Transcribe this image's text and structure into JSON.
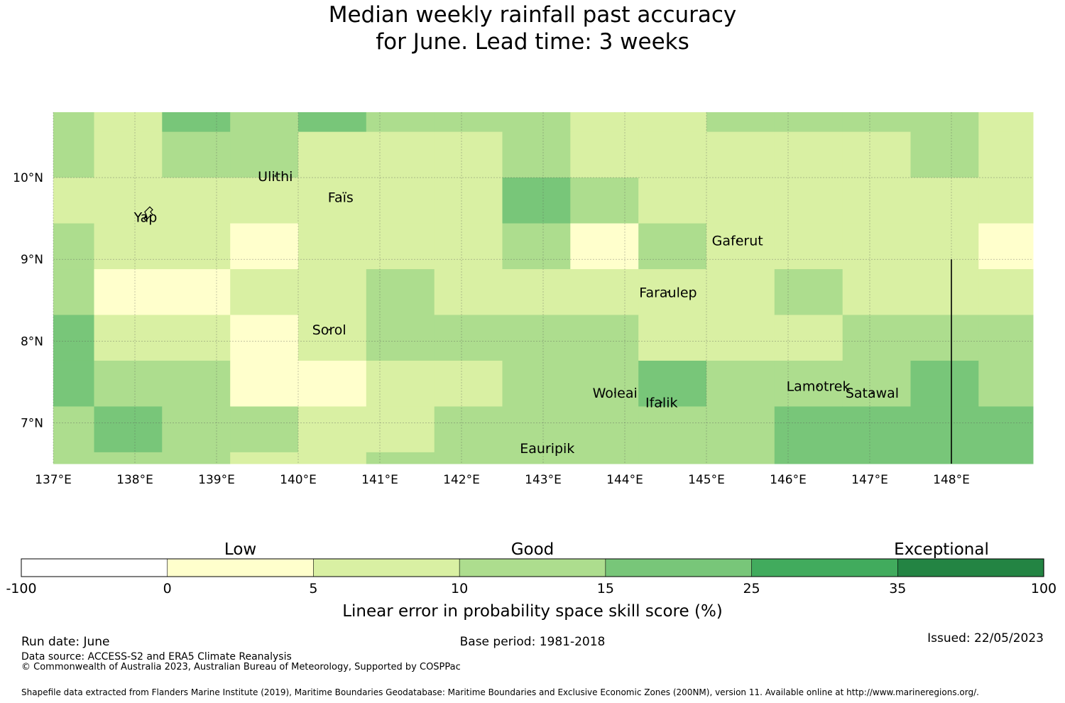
{
  "title": {
    "line1": "Median weekly rainfall past accuracy",
    "line2": "for June. Lead time: 3 weeks"
  },
  "map": {
    "type": "heatmap",
    "lon_range": [
      137.0,
      149.0
    ],
    "lat_range": [
      6.5,
      10.8
    ],
    "grid_lines": true,
    "lon_edges": [
      137.0,
      137.5,
      138.333,
      139.167,
      140.0,
      140.833,
      141.667,
      142.5,
      143.333,
      144.167,
      145.0,
      145.833,
      146.667,
      147.5,
      148.333,
      149.0
    ],
    "lat_edges": [
      10.8,
      10.56,
      10.0,
      9.44,
      8.88,
      8.32,
      7.76,
      7.2,
      6.64,
      6.5
    ],
    "class_colors": [
      "#ffffff",
      "#ffffcc",
      "#d9f0a3",
      "#addd8e",
      "#78c679",
      "#41ab5d",
      "#238443"
    ],
    "cell_classes": [
      [
        3,
        2,
        4,
        3,
        4,
        3,
        3,
        3,
        2,
        2,
        3,
        3,
        3,
        3,
        2
      ],
      [
        3,
        2,
        3,
        3,
        2,
        2,
        2,
        3,
        2,
        2,
        2,
        2,
        2,
        3,
        2
      ],
      [
        2,
        2,
        2,
        2,
        2,
        2,
        2,
        4,
        3,
        2,
        2,
        2,
        2,
        2,
        2
      ],
      [
        3,
        2,
        2,
        1,
        2,
        2,
        2,
        3,
        1,
        3,
        2,
        2,
        2,
        2,
        1
      ],
      [
        3,
        1,
        1,
        2,
        2,
        3,
        2,
        2,
        2,
        2,
        2,
        3,
        2,
        2,
        2
      ],
      [
        4,
        2,
        2,
        1,
        2,
        3,
        3,
        3,
        3,
        2,
        2,
        2,
        3,
        3,
        3
      ],
      [
        4,
        3,
        3,
        1,
        1,
        2,
        2,
        3,
        3,
        4,
        3,
        3,
        3,
        4,
        3
      ],
      [
        3,
        4,
        3,
        3,
        2,
        2,
        3,
        3,
        3,
        3,
        3,
        4,
        4,
        4,
        4
      ],
      [
        3,
        3,
        3,
        2,
        2,
        3,
        3,
        3,
        3,
        3,
        3,
        4,
        4,
        4,
        4
      ]
    ],
    "meridian_line": {
      "lon": 148.0,
      "lat_from": 6.5,
      "lat_to": 9.0
    },
    "lon_ticks": [
      {
        "lon": 137,
        "label": "137°E"
      },
      {
        "lon": 138,
        "label": "138°E"
      },
      {
        "lon": 139,
        "label": "139°E"
      },
      {
        "lon": 140,
        "label": "140°E"
      },
      {
        "lon": 141,
        "label": "141°E"
      },
      {
        "lon": 142,
        "label": "142°E"
      },
      {
        "lon": 143,
        "label": "143°E"
      },
      {
        "lon": 144,
        "label": "144°E"
      },
      {
        "lon": 145,
        "label": "145°E"
      },
      {
        "lon": 146,
        "label": "146°E"
      },
      {
        "lon": 147,
        "label": "147°E"
      },
      {
        "lon": 148,
        "label": "148°E"
      }
    ],
    "lat_ticks": [
      {
        "lat": 10,
        "label": "10°N"
      },
      {
        "lat": 9,
        "label": "9°N"
      },
      {
        "lat": 8,
        "label": "8°N"
      },
      {
        "lat": 7,
        "label": "7°N"
      }
    ],
    "places": [
      {
        "name": "Ulithi",
        "lon": 139.72,
        "lat": 10.02
      },
      {
        "name": "Yap",
        "lon": 138.13,
        "lat": 9.52
      },
      {
        "name": "Faïs",
        "lon": 140.52,
        "lat": 9.76
      },
      {
        "name": "Gaferut",
        "lon": 145.38,
        "lat": 9.23
      },
      {
        "name": "Faraulep",
        "lon": 144.53,
        "lat": 8.6
      },
      {
        "name": "Sorol",
        "lon": 140.38,
        "lat": 8.14
      },
      {
        "name": "Woleai",
        "lon": 143.88,
        "lat": 7.37
      },
      {
        "name": "Ifalik",
        "lon": 144.45,
        "lat": 7.25
      },
      {
        "name": "Lamotrek",
        "lon": 146.37,
        "lat": 7.45
      },
      {
        "name": "Satawal",
        "lon": 147.03,
        "lat": 7.37
      },
      {
        "name": "Eauripik",
        "lon": 143.05,
        "lat": 6.69
      }
    ]
  },
  "colorbar": {
    "boundaries": [
      "-100",
      "0",
      "5",
      "10",
      "15",
      "25",
      "35",
      "100"
    ],
    "colors": [
      "#ffffff",
      "#ffffcc",
      "#d9f0a3",
      "#addd8e",
      "#78c679",
      "#41ab5d",
      "#238443"
    ],
    "categories": [
      {
        "label": "Low",
        "segment": 1.5
      },
      {
        "label": "Good",
        "segment": 3.5
      },
      {
        "label": "Exceptional",
        "segment": 6.3
      }
    ],
    "xlabel": "Linear error in probability space skill score (%)"
  },
  "footer": {
    "run_date": "Run date: June",
    "base_period": "Base period: 1981-2018",
    "issued": "Issued: 22/05/2023",
    "data_source": "Data source: ACCESS-S2 and ERA5 Climate Reanalysis",
    "copyright": "© Commonwealth of Australia 2023, Australian Bureau of Meteorology, Supported by COSPPac",
    "shapefile": "Shapefile data extracted from Flanders Marine Institute (2019), Maritime Boundaries Geodatabase: Maritime Boundaries and Exclusive Economic Zones (200NM), version 11. Available online at http://www.marineregions.org/."
  }
}
